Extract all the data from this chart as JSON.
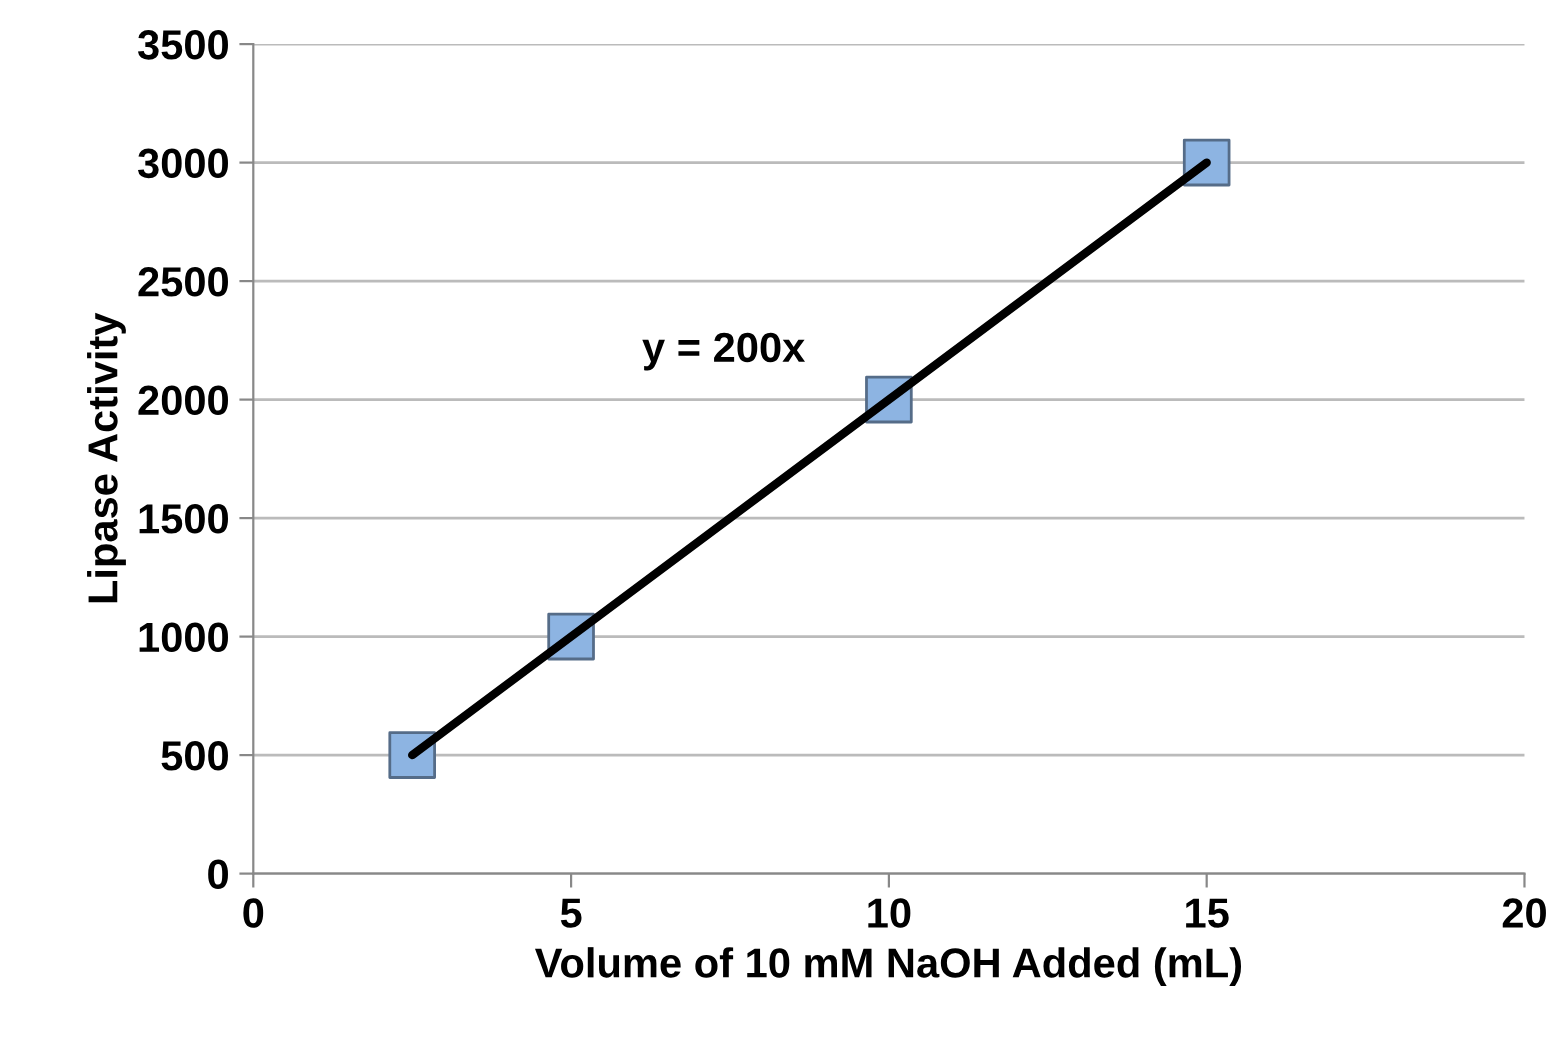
{
  "chart_data": {
    "type": "scatter",
    "xlabel": "Volume of 10 mM NaOH Added (mL)",
    "ylabel": "Lipase Activity",
    "xlim": [
      0,
      20
    ],
    "xticks": [
      0,
      5,
      10,
      15,
      20
    ],
    "ylim": [
      0,
      3500
    ],
    "yticks": [
      0,
      500,
      1000,
      1500,
      2000,
      2500,
      3000,
      3500
    ],
    "grid": "y",
    "marker": "square",
    "legend": false,
    "series": [
      {
        "type": "line",
        "x": [
          2.5,
          15
        ],
        "values": [
          500,
          3000
        ],
        "color": "#000000",
        "marker": "none"
      },
      {
        "x": [
          2.5,
          5,
          10,
          15
        ],
        "values": [
          500,
          1000,
          2000,
          3000
        ],
        "color": "#8db4e2"
      }
    ],
    "annotations": [
      "y = 200x"
    ]
  }
}
